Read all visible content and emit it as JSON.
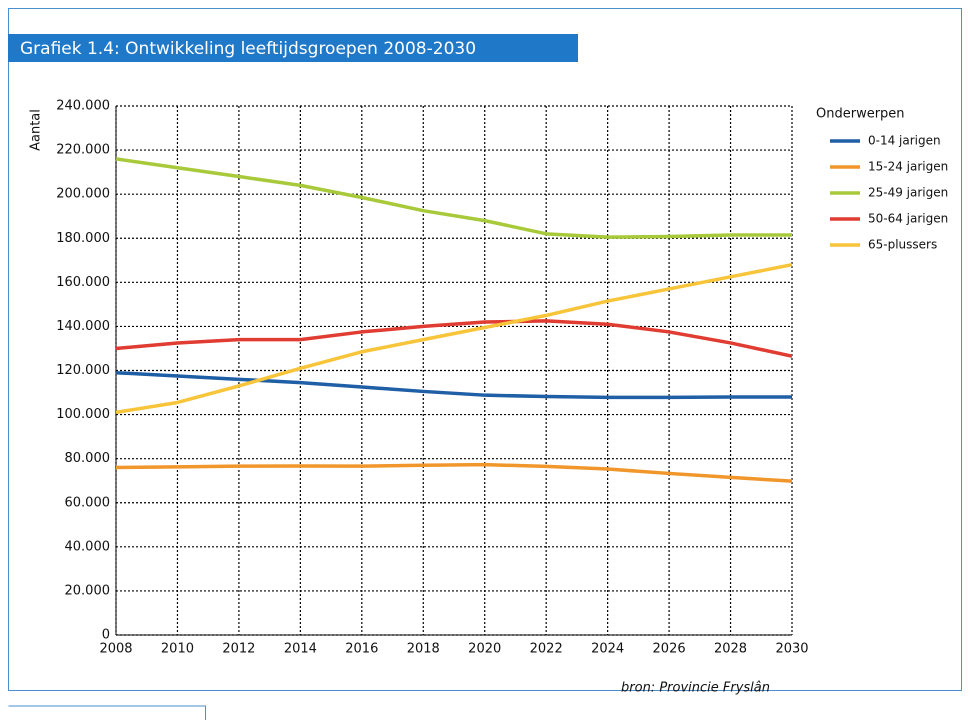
{
  "chart_data": {
    "type": "line",
    "title": "Grafiek 1.4: Ontwikkeling leeftijdsgroepen 2008-2030",
    "y_label": "Aantal",
    "legend_title": "Onderwerpen",
    "legend": "right",
    "source": "bron: Provincie Fryslân",
    "grid": true,
    "x": [
      2008,
      2010,
      2012,
      2014,
      2016,
      2018,
      2020,
      2022,
      2024,
      2026,
      2028,
      2030
    ],
    "xlim": [
      2008,
      2030
    ],
    "xticks": [
      2008,
      2010,
      2012,
      2014,
      2016,
      2018,
      2020,
      2022,
      2024,
      2026,
      2028,
      2030
    ],
    "ylim": [
      0,
      240000
    ],
    "yticks": [
      0,
      {
        "value": 20000,
        "label": "20.000"
      },
      {
        "value": 40000,
        "label": "40.000"
      },
      {
        "value": 60000,
        "label": "60.000"
      },
      {
        "value": 80000,
        "label": "80.000"
      },
      {
        "value": 100000,
        "label": "100.000"
      },
      {
        "value": 120000,
        "label": "120.000"
      },
      {
        "value": 140000,
        "label": "140.000"
      },
      {
        "value": 160000,
        "label": "160.000"
      },
      {
        "value": 180000,
        "label": "180.000"
      },
      {
        "value": 200000,
        "label": "200.000"
      },
      {
        "value": 220000,
        "label": "220.000"
      },
      {
        "value": 240000,
        "label": "240.000"
      }
    ],
    "series": [
      {
        "name": "0-14 jarigen",
        "color": "#1f5fa6",
        "values": [
          119000,
          117500,
          116000,
          114500,
          112500,
          110500,
          108800,
          108200,
          107800,
          107800,
          108000,
          108000
        ]
      },
      {
        "name": "15-24 jarigen",
        "color": "#f0962a",
        "values": [
          76000,
          76300,
          76600,
          76700,
          76600,
          77000,
          77300,
          76500,
          75300,
          73300,
          71500,
          69800
        ]
      },
      {
        "name": "25-49 jarigen",
        "color": "#a8c93a",
        "values": [
          216000,
          212000,
          208000,
          204000,
          198500,
          192500,
          188000,
          182000,
          180500,
          180800,
          181500,
          181500
        ]
      },
      {
        "name": "50-64 jarigen",
        "color": "#e03c31",
        "values": [
          130000,
          132500,
          134000,
          134000,
          137500,
          140000,
          142000,
          142500,
          141000,
          137500,
          132500,
          126500
        ]
      },
      {
        "name": "65-plussers",
        "color": "#f8c43a",
        "values": [
          101000,
          105500,
          113000,
          121000,
          128500,
          134000,
          139500,
          145000,
          151500,
          157000,
          162500,
          168000
        ]
      }
    ]
  }
}
